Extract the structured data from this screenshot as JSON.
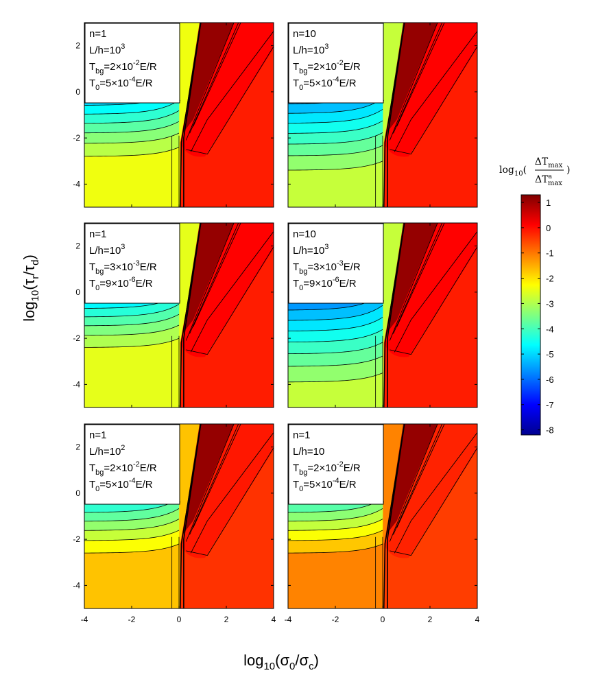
{
  "chart_data": {
    "type": "contour",
    "xlabel": {
      "base": "log",
      "sub": "10",
      "open": "(σ",
      "s1": "0",
      "mid": "/σ",
      "s2": "c",
      "close": ")"
    },
    "ylabel": {
      "base": "log",
      "sub": "10",
      "open": "(τ",
      "s1": "r",
      "mid": "/τ",
      "s2": "d",
      "close": ")"
    },
    "xlim": [
      -4,
      4
    ],
    "ylim": [
      -5,
      3
    ],
    "xticks": [
      "-4",
      "-2",
      "0",
      "2",
      "4"
    ],
    "yticks": [
      "2",
      "0",
      "-2",
      "-4"
    ],
    "colorbar": {
      "title": {
        "pre": "log",
        "sub": "10",
        "num": "ΔT",
        "num_sub": "max",
        "den": "ΔT",
        "den_sup": "a",
        "den_sub": "max"
      },
      "ticks": [
        "1",
        "0",
        "-1",
        "-2",
        "-3",
        "-4",
        "-5",
        "-6",
        "-7",
        "-8"
      ],
      "range": [
        -8.2,
        1.3
      ],
      "colors": [
        "#00008f",
        "#0000ff",
        "#0080ff",
        "#00ffff",
        "#80ff80",
        "#ffff00",
        "#ff8000",
        "#ff0000",
        "#800000"
      ]
    },
    "panels": [
      {
        "lines": [
          {
            "t": "n=1"
          },
          {
            "t": "L/h=10",
            "sup": "3"
          },
          {
            "t": "T",
            "sub": "bg",
            "t2": "=2×10",
            "sup": "-2",
            "t3": "E/R"
          },
          {
            "t": "T",
            "sub": "0",
            "t2": "=5×10",
            "sup": "-4",
            "t3": "E/R"
          }
        ],
        "plateau_level": -2.4,
        "red_level": -0.15,
        "floor": -2.8
      },
      {
        "lines": [
          {
            "t": "n=10"
          },
          {
            "t": "L/h=10",
            "sup": "3"
          },
          {
            "t": "T",
            "sub": "bg",
            "t2": "=2×10",
            "sup": "-2",
            "t3": "E/R"
          },
          {
            "t": "T",
            "sub": "0",
            "t2": "=5×10",
            "sup": "-4",
            "t3": "E/R"
          }
        ],
        "plateau_level": -2.8,
        "red_level": -0.15,
        "floor": -3.4
      },
      {
        "lines": [
          {
            "t": "n=1"
          },
          {
            "t": "L/h=10",
            "sup": "3"
          },
          {
            "t": "T",
            "sub": "bg",
            "t2": "=3×10",
            "sup": "-3",
            "t3": "E/R"
          },
          {
            "t": "T",
            "sub": "0",
            "t2": "=9×10",
            "sup": "-6",
            "t3": "E/R"
          }
        ],
        "plateau_level": -2.5,
        "red_level": -0.15,
        "floor": -2.4
      },
      {
        "lines": [
          {
            "t": "n=10"
          },
          {
            "t": "L/h=10",
            "sup": "3"
          },
          {
            "t": "T",
            "sub": "bg",
            "t2": "=3×10",
            "sup": "-3",
            "t3": "E/R"
          },
          {
            "t": "T",
            "sub": "0",
            "t2": "=9×10",
            "sup": "-6",
            "t3": "E/R"
          }
        ],
        "plateau_level": -2.8,
        "red_level": -0.15,
        "floor": -3.9
      },
      {
        "lines": [
          {
            "t": "n=1"
          },
          {
            "t": "L/h=10",
            "sup": "2"
          },
          {
            "t": "T",
            "sub": "bg",
            "t2": "=2×10",
            "sup": "-2",
            "t3": "E/R"
          },
          {
            "t": "T",
            "sub": "0",
            "t2": "=5×10",
            "sup": "-4",
            "t3": "E/R"
          }
        ],
        "plateau_level": -1.7,
        "red_level": -0.35,
        "floor": -2.6
      },
      {
        "lines": [
          {
            "t": "n=1"
          },
          {
            "t": "L/h=10"
          },
          {
            "t": "T",
            "sub": "bg",
            "t2": "=2×10",
            "sup": "-2",
            "t3": "E/R"
          },
          {
            "t": "T",
            "sub": "0",
            "t2": "=5×10",
            "sup": "-4",
            "t3": "E/R"
          }
        ],
        "plateau_level": -1.1,
        "red_level": -0.45,
        "floor": -2.6
      }
    ]
  }
}
